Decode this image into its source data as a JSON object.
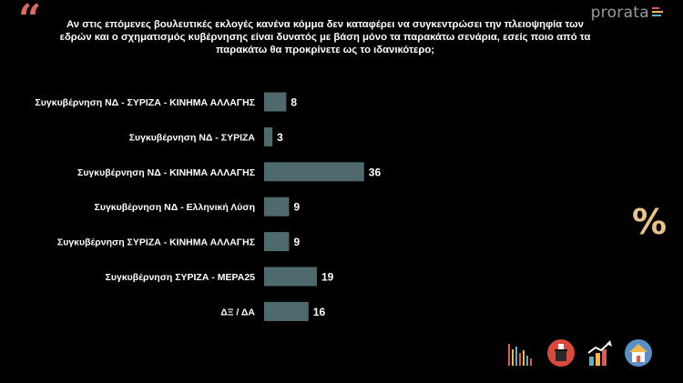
{
  "header": {
    "question": "Αν στις επόμενες βουλευτικές εκλογές κανένα κόμμα δεν καταφέρει να συγκεντρώσει την πλειοψηφία των εδρών και ο σχηματισμός κυβέρνησης είναι δυνατός με βάση μόνο τα παρακάτω σενάρια, εσείς ποιο από τα παρακάτω θα προκρίνετε ως το ιδανικότερο;",
    "logo_text": "prorata"
  },
  "chart_data": {
    "type": "bar",
    "orientation": "horizontal",
    "categories": [
      "Συγκυβέρνηση ΝΔ - ΣΥΡΙΖΑ - ΚΙΝΗΜΑ ΑΛΛΑΓΗΣ",
      "Συγκυβέρνηση ΝΔ - ΣΥΡΙΖΑ",
      "Συγκυβέρνηση ΝΔ - ΚΙΝΗΜΑ ΑΛΛΑΓΗΣ",
      "Συγκυβέρνηση ΝΔ - Ελληνική Λύση",
      "Συγκυβέρνηση ΣΥΡΙΖΑ - ΚΙΝΗΜΑ ΑΛΛΑΓΗΣ",
      "Συγκυβέρνηση ΣΥΡΙΖΑ - ΜΕΡΑ25",
      "ΔΞ / ΔΑ"
    ],
    "values": [
      8,
      3,
      36,
      9,
      9,
      19,
      16
    ],
    "unit_symbol": "%",
    "bar_color": "#4f6a6c",
    "grid": false,
    "legend": "none"
  },
  "colors": {
    "background": "#000000",
    "quote": "#d96a5e",
    "percent_symbol": "#e8c48a",
    "bar": "#4f6a6c",
    "text": "#ffffff"
  },
  "bottom_icons": [
    "bar-chart-icon",
    "ballot-box-icon",
    "growth-chart-icon",
    "house-icon"
  ]
}
